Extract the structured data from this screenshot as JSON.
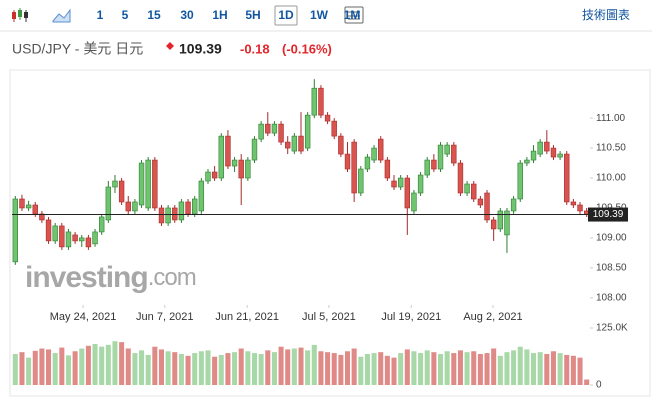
{
  "toolbar": {
    "intervals": [
      "1",
      "5",
      "15",
      "30",
      "1H",
      "5H",
      "1D",
      "1W",
      "1M"
    ],
    "selected": "1D",
    "link": "技術圖表"
  },
  "header": {
    "symbol": "USD/JPY - 美元 日元",
    "price": "109.39",
    "change": "-0.18",
    "change_pct": "(-0.16%)"
  },
  "watermark": {
    "brand": "investing",
    "suffix": ".com"
  },
  "chart_data": {
    "type": "candlestick",
    "ohlc": [
      [
        108.6,
        109.7,
        108.55,
        109.65
      ],
      [
        109.65,
        109.72,
        109.45,
        109.5
      ],
      [
        109.5,
        109.62,
        109.45,
        109.55
      ],
      [
        109.55,
        109.6,
        109.35,
        109.4
      ],
      [
        109.4,
        109.45,
        109.25,
        109.3
      ],
      [
        109.3,
        109.35,
        108.9,
        108.95
      ],
      [
        108.95,
        109.25,
        108.9,
        109.2
      ],
      [
        109.2,
        109.25,
        108.8,
        108.85
      ],
      [
        108.85,
        109.15,
        108.8,
        109.1
      ],
      [
        109.05,
        109.1,
        108.9,
        108.95
      ],
      [
        108.95,
        109.05,
        108.85,
        109.0
      ],
      [
        109.0,
        109.05,
        108.8,
        108.85
      ],
      [
        108.9,
        109.15,
        108.85,
        109.1
      ],
      [
        109.1,
        109.4,
        109.05,
        109.35
      ],
      [
        109.3,
        109.95,
        109.25,
        109.85
      ],
      [
        109.85,
        110.05,
        109.75,
        109.95
      ],
      [
        109.95,
        110.0,
        109.55,
        109.6
      ],
      [
        109.6,
        109.7,
        109.4,
        109.45
      ],
      [
        109.45,
        109.65,
        109.4,
        109.6
      ],
      [
        109.55,
        110.3,
        109.5,
        110.25
      ],
      [
        109.5,
        110.35,
        109.45,
        110.3
      ],
      [
        110.3,
        110.35,
        109.45,
        109.5
      ],
      [
        109.5,
        109.55,
        109.2,
        109.25
      ],
      [
        109.25,
        109.55,
        109.2,
        109.5
      ],
      [
        109.5,
        109.55,
        109.25,
        109.3
      ],
      [
        109.3,
        109.65,
        109.25,
        109.6
      ],
      [
        109.6,
        109.65,
        109.35,
        109.4
      ],
      [
        109.4,
        109.7,
        109.35,
        109.65
      ],
      [
        109.45,
        110.0,
        109.4,
        109.95
      ],
      [
        109.95,
        110.15,
        109.9,
        110.1
      ],
      [
        110.1,
        110.2,
        109.95,
        110.0
      ],
      [
        110.0,
        110.75,
        109.95,
        110.7
      ],
      [
        110.7,
        110.8,
        110.15,
        110.2
      ],
      [
        110.2,
        110.35,
        110.1,
        110.3
      ],
      [
        110.3,
        110.4,
        109.55,
        110.0
      ],
      [
        110.0,
        110.35,
        109.95,
        110.3
      ],
      [
        110.3,
        110.7,
        110.25,
        110.65
      ],
      [
        110.65,
        110.95,
        110.6,
        110.9
      ],
      [
        110.9,
        111.1,
        110.7,
        110.75
      ],
      [
        110.75,
        110.95,
        110.7,
        110.9
      ],
      [
        110.9,
        110.95,
        110.55,
        110.6
      ],
      [
        110.6,
        110.7,
        110.4,
        110.5
      ],
      [
        110.45,
        110.75,
        110.4,
        110.7
      ],
      [
        110.7,
        111.1,
        110.4,
        110.45
      ],
      [
        110.5,
        111.1,
        110.45,
        111.05
      ],
      [
        111.05,
        111.65,
        111.0,
        111.5
      ],
      [
        111.5,
        111.55,
        111.0,
        111.05
      ],
      [
        111.05,
        111.1,
        110.9,
        110.95
      ],
      [
        110.95,
        111.0,
        110.65,
        110.7
      ],
      [
        110.7,
        110.75,
        110.35,
        110.4
      ],
      [
        110.4,
        110.6,
        110.1,
        110.15
      ],
      [
        110.6,
        110.65,
        109.6,
        109.75
      ],
      [
        109.75,
        110.2,
        109.7,
        110.15
      ],
      [
        110.15,
        110.4,
        110.1,
        110.35
      ],
      [
        110.3,
        110.55,
        110.25,
        110.5
      ],
      [
        110.65,
        110.7,
        110.25,
        110.3
      ],
      [
        110.3,
        110.35,
        109.95,
        110.0
      ],
      [
        109.95,
        110.05,
        109.8,
        109.85
      ],
      [
        109.85,
        110.05,
        109.8,
        110.0
      ],
      [
        110.0,
        110.05,
        109.05,
        109.5
      ],
      [
        109.45,
        109.8,
        109.4,
        109.75
      ],
      [
        109.75,
        110.1,
        109.7,
        110.05
      ],
      [
        110.05,
        110.35,
        110.0,
        110.3
      ],
      [
        110.3,
        110.4,
        110.1,
        110.15
      ],
      [
        110.15,
        110.6,
        110.1,
        110.55
      ],
      [
        110.4,
        110.6,
        110.35,
        110.55
      ],
      [
        110.55,
        110.6,
        110.2,
        110.25
      ],
      [
        110.25,
        110.3,
        109.7,
        109.75
      ],
      [
        109.75,
        109.95,
        109.7,
        109.9
      ],
      [
        109.9,
        109.95,
        109.6,
        109.65
      ],
      [
        109.65,
        109.7,
        109.5,
        109.55
      ],
      [
        109.75,
        109.8,
        109.25,
        109.3
      ],
      [
        109.3,
        109.35,
        108.95,
        109.15
      ],
      [
        109.15,
        109.5,
        109.1,
        109.45
      ],
      [
        109.05,
        109.5,
        108.75,
        109.45
      ],
      [
        109.45,
        109.7,
        109.4,
        109.65
      ],
      [
        109.65,
        110.3,
        109.6,
        110.25
      ],
      [
        110.25,
        110.35,
        110.2,
        110.3
      ],
      [
        110.3,
        110.55,
        110.25,
        110.45
      ],
      [
        110.4,
        110.65,
        110.35,
        110.6
      ],
      [
        110.6,
        110.8,
        110.4,
        110.45
      ],
      [
        110.5,
        110.55,
        110.3,
        110.35
      ],
      [
        110.35,
        110.45,
        110.3,
        110.4
      ],
      [
        110.4,
        110.45,
        109.55,
        109.6
      ],
      [
        109.6,
        109.65,
        109.5,
        109.55
      ],
      [
        109.55,
        109.6,
        109.4,
        109.45
      ],
      [
        109.45,
        109.5,
        109.35,
        109.39
      ]
    ],
    "volumes": [
      68000,
      72000,
      60000,
      75000,
      80000,
      78000,
      70000,
      82000,
      65000,
      74000,
      80000,
      86000,
      90000,
      84000,
      88000,
      96000,
      94000,
      80000,
      70000,
      76000,
      66000,
      84000,
      78000,
      74000,
      72000,
      68000,
      64000,
      70000,
      74000,
      76000,
      62000,
      66000,
      70000,
      72000,
      80000,
      74000,
      70000,
      68000,
      76000,
      72000,
      84000,
      78000,
      80000,
      82000,
      76000,
      88000,
      74000,
      72000,
      70000,
      66000,
      74000,
      80000,
      62000,
      68000,
      70000,
      72000,
      64000,
      60000,
      70000,
      78000,
      74000,
      70000,
      76000,
      72000,
      68000,
      74000,
      70000,
      76000,
      72000,
      74000,
      68000,
      70000,
      80000,
      64000,
      72000,
      76000,
      84000,
      78000,
      70000,
      72000,
      68000,
      74000,
      70000,
      66000,
      64000,
      60000,
      12000
    ],
    "xlim": [
      -0.5,
      86.5
    ],
    "xticks": [
      {
        "value": 10.2,
        "label": "May 24, 2021"
      },
      {
        "value": 22.5,
        "label": "Jun 7, 2021"
      },
      {
        "value": 34.9,
        "label": "Jun 21, 2021"
      },
      {
        "value": 47.2,
        "label": "Jul 5, 2021"
      },
      {
        "value": 59.6,
        "label": "Jul 19, 2021"
      },
      {
        "value": 71.9,
        "label": "Aug 2, 2021"
      }
    ],
    "ylim": [
      107.88,
      111.72
    ],
    "yticks": [
      {
        "value": 108,
        "label": "108.00"
      },
      {
        "value": 108.5,
        "label": "108.50"
      },
      {
        "value": 109,
        "label": "109.00"
      },
      {
        "value": 109.5,
        "label": "109.50"
      },
      {
        "value": 110,
        "label": "110.00"
      },
      {
        "value": 110.5,
        "label": "110.50"
      },
      {
        "value": 111,
        "label": "111.00"
      }
    ],
    "y2lim": [
      0,
      125000
    ],
    "y2ticks": [
      {
        "value": 125000,
        "label": "125.0K"
      },
      0
    ],
    "last_price": 109.39,
    "up_color": "#6fc46f",
    "down_color": "#d9534f",
    "volume_up_color": "#a8d8a8",
    "volume_down_color": "#e08a87"
  }
}
